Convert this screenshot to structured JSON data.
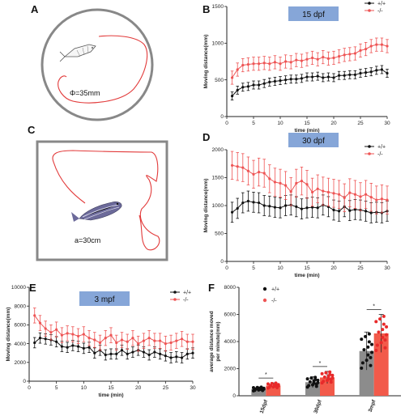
{
  "panels": {
    "A": {
      "letter": "A",
      "diameter_label": "Φ=35mm"
    },
    "C": {
      "letter": "C",
      "side_label": "a=30cm"
    }
  },
  "colors": {
    "wt": "#111111",
    "mut": "#ee5555",
    "mut_bar": "#f25a4a",
    "wt_bar": "#8c8c8c",
    "badge": "#86a6d8"
  },
  "chart_data": [
    {
      "id": "B",
      "letter": "B",
      "type": "line",
      "badge": "15 dpf",
      "xlabel": "time (min)",
      "ylabel": "Moving distance(mm)",
      "xlim": [
        0,
        30
      ],
      "ylim": [
        0,
        1500
      ],
      "xticks": [
        0,
        5,
        10,
        15,
        20,
        25,
        30
      ],
      "yticks": [
        0,
        500,
        1000,
        1500
      ],
      "x": [
        1,
        2,
        3,
        4,
        5,
        6,
        7,
        8,
        9,
        10,
        11,
        12,
        13,
        14,
        15,
        16,
        17,
        18,
        19,
        20,
        21,
        22,
        23,
        24,
        25,
        26,
        27,
        28,
        29,
        30
      ],
      "series": [
        {
          "name": "+/+",
          "values": [
            280,
            360,
            400,
            410,
            430,
            430,
            450,
            470,
            480,
            490,
            500,
            510,
            510,
            520,
            540,
            540,
            550,
            530,
            540,
            530,
            560,
            560,
            570,
            570,
            590,
            600,
            610,
            630,
            640,
            590
          ],
          "err": 55
        },
        {
          "name": "-/-",
          "values": [
            530,
            640,
            700,
            710,
            720,
            720,
            730,
            720,
            740,
            720,
            750,
            740,
            770,
            760,
            780,
            800,
            780,
            810,
            790,
            800,
            820,
            840,
            850,
            860,
            900,
            920,
            960,
            980,
            980,
            960
          ],
          "err": 90
        }
      ]
    },
    {
      "id": "D",
      "letter": "D",
      "type": "line",
      "badge": "30 dpf",
      "xlabel": "time (min)",
      "ylabel": "Moving distance(mm)",
      "xlim": [
        0,
        30
      ],
      "ylim": [
        0,
        2000
      ],
      "xticks": [
        0,
        5,
        10,
        15,
        20,
        25,
        30
      ],
      "yticks": [
        0,
        500,
        1000,
        1500,
        2000
      ],
      "x": [
        1,
        2,
        3,
        4,
        5,
        6,
        7,
        8,
        9,
        10,
        11,
        12,
        13,
        14,
        15,
        16,
        17,
        18,
        19,
        20,
        21,
        22,
        23,
        24,
        25,
        26,
        27,
        28,
        29,
        30
      ],
      "series": [
        {
          "name": "+/+",
          "values": [
            880,
            950,
            1050,
            1080,
            1060,
            1050,
            1000,
            990,
            970,
            960,
            1000,
            1010,
            980,
            940,
            960,
            970,
            960,
            1010,
            980,
            920,
            900,
            980,
            910,
            930,
            920,
            900,
            870,
            880,
            870,
            900
          ],
          "err": 180
        },
        {
          "name": "-/-",
          "values": [
            1720,
            1700,
            1680,
            1620,
            1560,
            1600,
            1580,
            1480,
            1420,
            1400,
            1360,
            1250,
            1400,
            1440,
            1380,
            1240,
            1300,
            1260,
            1240,
            1220,
            1200,
            1140,
            1230,
            1200,
            1160,
            1200,
            1150,
            1100,
            1120,
            1100
          ],
          "err": 250
        }
      ]
    },
    {
      "id": "E",
      "letter": "E",
      "type": "line",
      "badge": "3 mpf",
      "xlabel": "time (min)",
      "ylabel": "Moving distance(mm)",
      "xlim": [
        0,
        30
      ],
      "ylim": [
        0,
        10000
      ],
      "xticks": [
        0,
        5,
        10,
        15,
        20,
        25,
        30
      ],
      "yticks": [
        0,
        2000,
        4000,
        6000,
        8000,
        10000
      ],
      "x": [
        1,
        2,
        3,
        4,
        5,
        6,
        7,
        8,
        9,
        10,
        11,
        12,
        13,
        14,
        15,
        16,
        17,
        18,
        19,
        20,
        21,
        22,
        23,
        24,
        25,
        26,
        27,
        28,
        29,
        30
      ],
      "series": [
        {
          "name": "+/+",
          "values": [
            4100,
            4600,
            4500,
            4400,
            4200,
            3700,
            3600,
            3800,
            3700,
            3500,
            3600,
            3000,
            3300,
            2800,
            2900,
            2900,
            3300,
            2900,
            3100,
            3300,
            3100,
            2800,
            3100,
            2900,
            2700,
            2500,
            2600,
            2500,
            2900,
            3000
          ],
          "err": 550
        },
        {
          "name": "-/-",
          "values": [
            7000,
            6200,
            5600,
            5200,
            5500,
            4900,
            5100,
            5000,
            4800,
            5000,
            4600,
            4400,
            4100,
            4600,
            4900,
            4100,
            4400,
            4200,
            4600,
            4000,
            4300,
            4600,
            4300,
            4300,
            4000,
            4100,
            4300,
            4500,
            4200,
            4200
          ],
          "err": 800
        }
      ]
    },
    {
      "id": "F",
      "letter": "F",
      "type": "bar",
      "ylabel_lines": [
        "average distance moved",
        "per minute(mm)"
      ],
      "ylim": [
        0,
        8000
      ],
      "yticks": [
        0,
        2000,
        4000,
        6000,
        8000
      ],
      "categories": [
        "15dpf",
        "30dpf",
        "3mpf"
      ],
      "significance": [
        "*",
        "*",
        "*"
      ],
      "series": [
        {
          "name": "+/+",
          "values": [
            500,
            1000,
            3300
          ],
          "err": [
            150,
            400,
            1400
          ]
        },
        {
          "name": "-/-",
          "values": [
            750,
            1350,
            4600
          ],
          "err": [
            200,
            450,
            1400
          ]
        }
      ]
    }
  ]
}
